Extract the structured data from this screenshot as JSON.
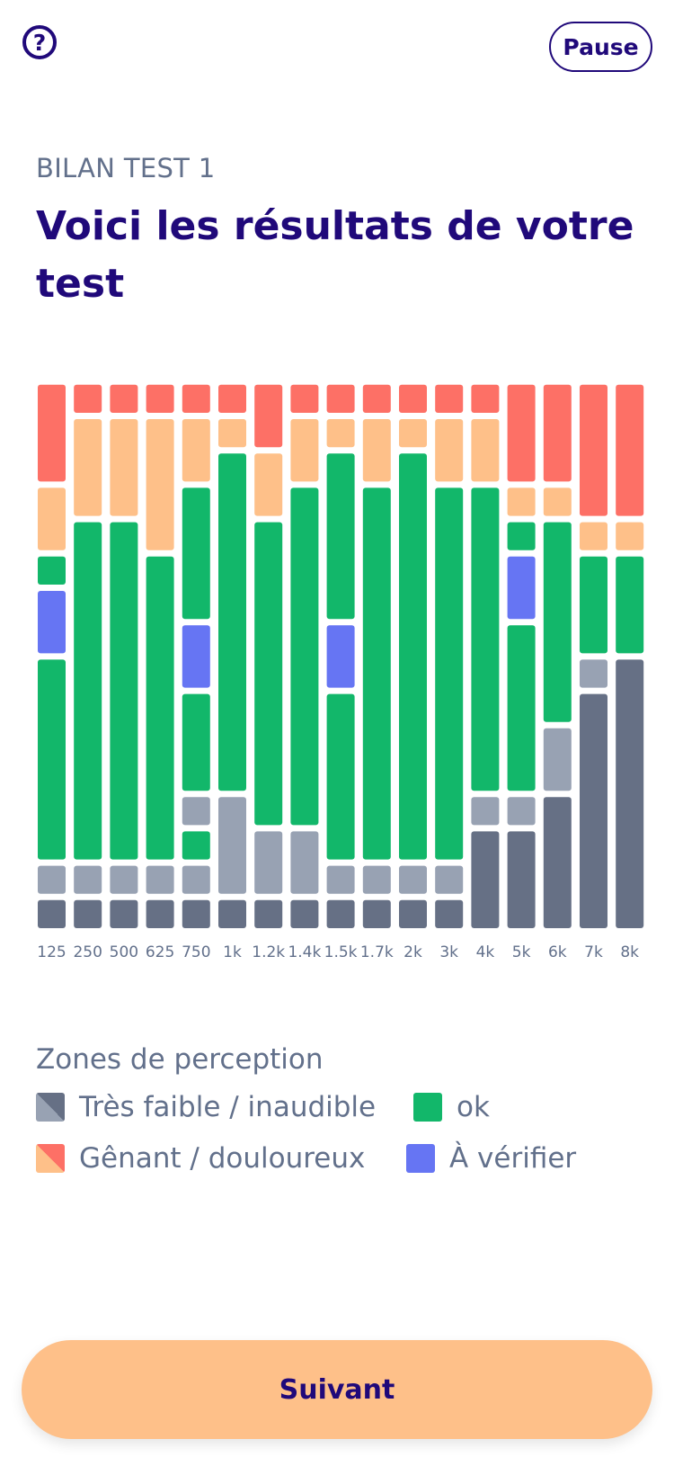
{
  "header": {
    "help_icon_glyph": "?",
    "pause_label": "Pause"
  },
  "subtitle": "BILAN TEST 1",
  "title": "Voici les résultats de votre test",
  "chart_data": {
    "type": "heatmap",
    "categories": [
      "125",
      "250",
      "500",
      "625",
      "750",
      "1k",
      "1.2k",
      "1.4k",
      "1.5k",
      "1.7k",
      "2k",
      "3k",
      "4k",
      "5k",
      "6k",
      "7k",
      "8k"
    ],
    "levels_per_column": 16,
    "zones": {
      "D": "Très faible / inaudible",
      "L": "Très faible / inaudible",
      "G": "ok",
      "O": "Gênant / douloureux",
      "R": "Gênant / douloureux",
      "B": "À vérifier"
    },
    "colors": {
      "D": "#667085",
      "L": "#98a2b3",
      "G": "#12b76a",
      "O": "#fec089",
      "R": "#fd7066",
      "B": "#6675f3"
    },
    "columns": [
      [
        "D",
        "L",
        "G",
        "G",
        "G",
        "G",
        "G",
        "G",
        "B",
        "B",
        "G",
        "O",
        "O",
        "R",
        "R",
        "R"
      ],
      [
        "D",
        "L",
        "G",
        "G",
        "G",
        "G",
        "G",
        "G",
        "G",
        "G",
        "G",
        "G",
        "O",
        "O",
        "O",
        "R"
      ],
      [
        "D",
        "L",
        "G",
        "G",
        "G",
        "G",
        "G",
        "G",
        "G",
        "G",
        "G",
        "G",
        "O",
        "O",
        "O",
        "R"
      ],
      [
        "D",
        "L",
        "G",
        "G",
        "G",
        "G",
        "G",
        "G",
        "G",
        "G",
        "G",
        "O",
        "O",
        "O",
        "O",
        "R"
      ],
      [
        "D",
        "L",
        "G",
        "L",
        "G",
        "G",
        "G",
        "B",
        "B",
        "G",
        "G",
        "G",
        "G",
        "O",
        "O",
        "R"
      ],
      [
        "D",
        "L",
        "L",
        "L",
        "G",
        "G",
        "G",
        "G",
        "G",
        "G",
        "G",
        "G",
        "G",
        "G",
        "O",
        "R"
      ],
      [
        "D",
        "L",
        "L",
        "G",
        "G",
        "G",
        "G",
        "G",
        "G",
        "G",
        "G",
        "G",
        "O",
        "O",
        "R",
        "R"
      ],
      [
        "D",
        "L",
        "L",
        "G",
        "G",
        "G",
        "G",
        "G",
        "G",
        "G",
        "G",
        "G",
        "G",
        "O",
        "O",
        "R"
      ],
      [
        "D",
        "L",
        "G",
        "G",
        "G",
        "G",
        "G",
        "B",
        "B",
        "G",
        "G",
        "G",
        "G",
        "G",
        "O",
        "R"
      ],
      [
        "D",
        "L",
        "G",
        "G",
        "G",
        "G",
        "G",
        "G",
        "G",
        "G",
        "G",
        "G",
        "G",
        "O",
        "O",
        "R"
      ],
      [
        "D",
        "L",
        "G",
        "G",
        "G",
        "G",
        "G",
        "G",
        "G",
        "G",
        "G",
        "G",
        "G",
        "G",
        "O",
        "R"
      ],
      [
        "D",
        "L",
        "G",
        "G",
        "G",
        "G",
        "G",
        "G",
        "G",
        "G",
        "G",
        "G",
        "G",
        "O",
        "O",
        "R"
      ],
      [
        "D",
        "D",
        "D",
        "L",
        "G",
        "G",
        "G",
        "G",
        "G",
        "G",
        "G",
        "G",
        "G",
        "O",
        "O",
        "R"
      ],
      [
        "D",
        "D",
        "D",
        "L",
        "G",
        "G",
        "G",
        "G",
        "G",
        "B",
        "B",
        "G",
        "O",
        "R",
        "R",
        "R"
      ],
      [
        "D",
        "D",
        "D",
        "D",
        "L",
        "L",
        "G",
        "G",
        "G",
        "G",
        "G",
        "G",
        "O",
        "R",
        "R",
        "R"
      ],
      [
        "D",
        "D",
        "D",
        "D",
        "D",
        "D",
        "D",
        "L",
        "G",
        "G",
        "G",
        "O",
        "R",
        "R",
        "R",
        "R"
      ],
      [
        "D",
        "D",
        "D",
        "D",
        "D",
        "D",
        "D",
        "D",
        "G",
        "G",
        "G",
        "O",
        "R",
        "R",
        "R",
        "R"
      ]
    ]
  },
  "legend": {
    "title": "Zones de perception",
    "items": [
      {
        "label": "Très faible / inaudible",
        "colors": [
          "#667085",
          "#98a2b3"
        ]
      },
      {
        "label": "ok",
        "colors": [
          "#12b76a"
        ]
      },
      {
        "label": "Gênant / douloureux",
        "colors": [
          "#fd7066",
          "#fec089"
        ]
      },
      {
        "label": "À vérifier",
        "colors": [
          "#6675f3"
        ]
      }
    ]
  },
  "footer": {
    "next_label": "Suivant"
  }
}
